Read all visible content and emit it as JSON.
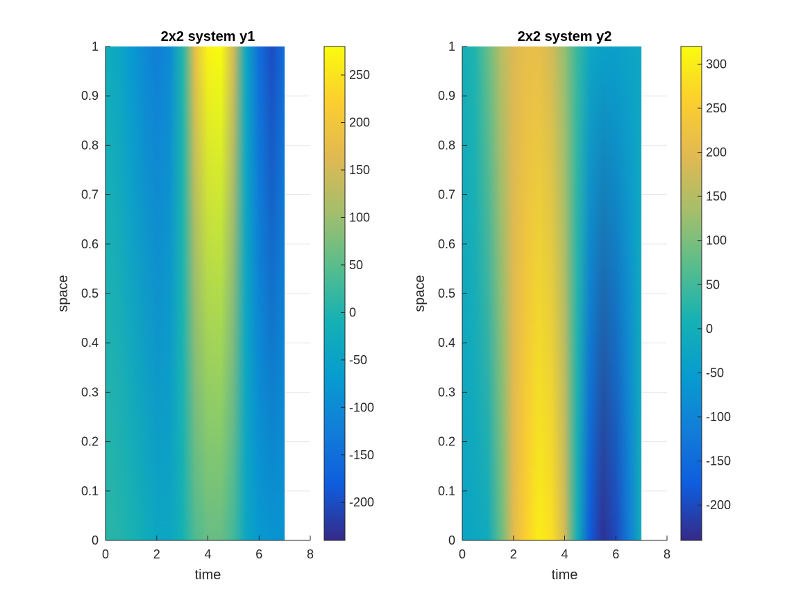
{
  "chart_data": [
    {
      "type": "heatmap",
      "title": "2x2 system y1",
      "xlabel": "time",
      "ylabel": "space",
      "xlim": [
        0,
        8
      ],
      "ylim": [
        0,
        1
      ],
      "x_data_range": [
        0,
        7
      ],
      "xticks": [
        0,
        2,
        4,
        6,
        8
      ],
      "yticks": [
        0,
        0.1,
        0.2,
        0.3,
        0.4,
        0.5,
        0.6,
        0.7,
        0.8,
        0.9,
        1
      ],
      "grid": true,
      "colormap": "parula",
      "clim": [
        -240,
        280
      ],
      "colorbar_ticks": [
        -200,
        -150,
        -100,
        -50,
        0,
        50,
        100,
        150,
        200,
        250
      ],
      "field_profile": {
        "time": [
          0,
          0.5,
          1,
          1.5,
          2,
          2.5,
          3,
          3.5,
          4,
          4.5,
          5,
          5.5,
          6,
          6.5,
          7
        ],
        "value_at_space_0": [
          10,
          5,
          -5,
          -20,
          -40,
          -40,
          -10,
          40,
          60,
          60,
          30,
          -40,
          -70,
          -80,
          -80
        ],
        "value_at_space_1": [
          -20,
          -40,
          -70,
          -100,
          -120,
          -100,
          0,
          180,
          270,
          280,
          150,
          -40,
          -150,
          -200,
          -150
        ]
      }
    },
    {
      "type": "heatmap",
      "title": "2x2 system y2",
      "xlabel": "time",
      "ylabel": "space",
      "xlim": [
        0,
        8
      ],
      "ylim": [
        0,
        1
      ],
      "x_data_range": [
        0,
        7
      ],
      "xticks": [
        0,
        2,
        4,
        6,
        8
      ],
      "yticks": [
        0,
        0.1,
        0.2,
        0.3,
        0.4,
        0.5,
        0.6,
        0.7,
        0.8,
        0.9,
        1
      ],
      "grid": true,
      "colormap": "parula",
      "clim": [
        -240,
        320
      ],
      "colorbar_ticks": [
        -200,
        -150,
        -100,
        -50,
        0,
        50,
        100,
        150,
        200,
        250,
        300
      ],
      "field_profile": {
        "time": [
          0,
          0.5,
          1,
          1.5,
          2,
          2.5,
          3,
          3.5,
          4,
          4.5,
          5,
          5.5,
          6,
          6.5,
          7
        ],
        "value_at_space_0": [
          -30,
          -20,
          -10,
          80,
          200,
          260,
          300,
          280,
          180,
          0,
          -180,
          -230,
          -200,
          -120,
          0
        ],
        "value_at_space_1": [
          0,
          20,
          80,
          150,
          190,
          210,
          210,
          180,
          120,
          40,
          -20,
          -40,
          -40,
          -30,
          -20
        ]
      }
    }
  ]
}
